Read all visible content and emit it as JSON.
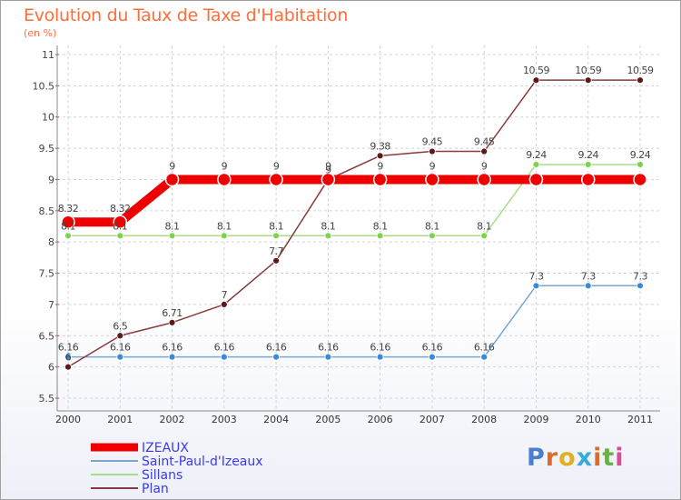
{
  "title": "Evolution du Taux de Taxe d'Habitation",
  "subtitle": "(en %)",
  "logo_text": "Proxiti",
  "logo_colors": [
    "#4a7fd0",
    "#e06a2a",
    "#e0b020",
    "#3aa8d8",
    "#e06a2a",
    "#6ab04a",
    "#d84a9a"
  ],
  "chart_data": {
    "type": "line",
    "title": "Evolution du Taux de Taxe d'Habitation",
    "subtitle": "(en %)",
    "xlabel": "",
    "ylabel": "",
    "x": [
      "2000",
      "2001",
      "2002",
      "2003",
      "2004",
      "2005",
      "2006",
      "2007",
      "2008",
      "2009",
      "2010",
      "2011"
    ],
    "ylim": [
      5.5,
      11
    ],
    "yticks": [
      "5.5",
      "6",
      "6.5",
      "7",
      "7.5",
      "8",
      "8.5",
      "9",
      "9.5",
      "10",
      "10.5",
      "11"
    ],
    "grid": true,
    "legend_position": "bottom-left",
    "series": [
      {
        "name": "IZEAUX",
        "color": "#ee0000",
        "marker_color": "#ee0000",
        "emphasis": true,
        "values": [
          8.32,
          8.32,
          9,
          9,
          9,
          9,
          9,
          9,
          9,
          9,
          9,
          9
        ],
        "labels": [
          "8.32",
          "8.32",
          "9",
          "9",
          "9",
          "9",
          "9",
          "9",
          "9",
          "",
          "",
          ""
        ]
      },
      {
        "name": "Saint-Paul-d'Izeaux",
        "color": "#7aa6d0",
        "marker_color": "#3a8ad8",
        "emphasis": false,
        "values": [
          6.16,
          6.16,
          6.16,
          6.16,
          6.16,
          6.16,
          6.16,
          6.16,
          6.16,
          7.3,
          7.3,
          7.3
        ],
        "labels": [
          "6.16",
          "6.16",
          "6.16",
          "6.16",
          "6.16",
          "6.16",
          "6.16",
          "6.16",
          "6.16",
          "7.3",
          "7.3",
          "7.3"
        ]
      },
      {
        "name": "Sillans",
        "color": "#a8dc88",
        "marker_color": "#7cd44a",
        "emphasis": false,
        "values": [
          8.1,
          8.1,
          8.1,
          8.1,
          8.1,
          8.1,
          8.1,
          8.1,
          8.1,
          9.24,
          9.24,
          9.24
        ],
        "labels": [
          "8.1",
          "8.1",
          "8.1",
          "8.1",
          "8.1",
          "8.1",
          "8.1",
          "8.1",
          "8.1",
          "9.24",
          "9.24",
          "9.24"
        ]
      },
      {
        "name": "Plan",
        "color": "#8a3a3a",
        "marker_color": "#5a1a1a",
        "emphasis": false,
        "values": [
          6,
          6.5,
          6.71,
          7,
          7.7,
          9,
          9.38,
          9.45,
          9.45,
          10.59,
          10.59,
          10.59
        ],
        "labels": [
          "6",
          "6.5",
          "6.71",
          "7",
          "7.7",
          "9",
          "9.38",
          "9.45",
          "9.45",
          "10.59",
          "10.59",
          "10.59"
        ]
      }
    ]
  }
}
